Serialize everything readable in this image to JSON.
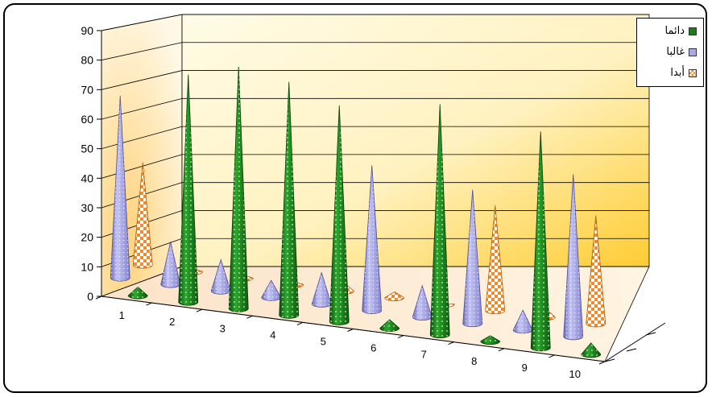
{
  "chart_data": {
    "type": "bar",
    "bar_shape": "cone",
    "projection": "3d",
    "categories": [
      "1",
      "2",
      "3",
      "4",
      "5",
      "6",
      "7",
      "8",
      "9",
      "10"
    ],
    "series": [
      {
        "name": "دائما",
        "color": "#2e8b2e",
        "values": [
          3,
          80,
          85,
          82,
          76,
          3,
          81,
          2,
          76,
          4
        ]
      },
      {
        "name": "غالبا",
        "color": "#9f9fe6",
        "values": [
          64,
          15,
          11,
          6,
          11,
          51,
          11,
          47,
          7,
          57
        ]
      },
      {
        "name": "أبدا",
        "color": "#f08a2a",
        "values": [
          36,
          1,
          1,
          1,
          3,
          2,
          0,
          37,
          3,
          38
        ]
      }
    ],
    "ylim": [
      0,
      90
    ],
    "yticks": [
      0,
      10,
      20,
      30,
      40,
      50,
      60,
      70,
      80,
      90
    ],
    "grid": true,
    "legend": "top-right"
  }
}
